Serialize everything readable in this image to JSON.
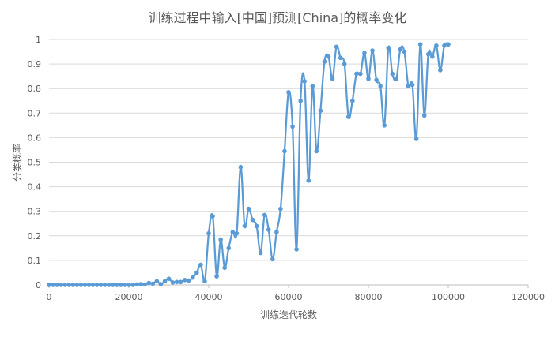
{
  "chart_data": {
    "type": "scatter",
    "title": "训练过程中输入[中国]预测[China]的概率变化",
    "xlabel": "训练迭代轮数",
    "ylabel": "分类概率",
    "xlim": [
      0,
      120000
    ],
    "ylim": [
      0,
      1
    ],
    "x_ticks": [
      "0",
      "20000",
      "40000",
      "60000",
      "80000",
      "100000",
      "120000"
    ],
    "y_ticks": [
      "0",
      "0.1",
      "0.2",
      "0.3",
      "0.4",
      "0.5",
      "0.6",
      "0.7",
      "0.8",
      "0.9",
      "1"
    ],
    "grid": "horizontal",
    "legend": "none",
    "color": "#5b9bd5",
    "marker": "circle",
    "line": "smooth",
    "series": [
      {
        "x": [
          0,
          1000,
          2000,
          3000,
          4000,
          5000,
          6000,
          7000,
          8000,
          9000,
          10000,
          11000,
          12000,
          13000,
          14000,
          15000,
          16000,
          17000,
          18000,
          19000,
          20000,
          21000,
          22000,
          23000,
          24000,
          25000,
          26000,
          27000,
          28000,
          29000,
          30000,
          31000,
          32000,
          33000,
          34000,
          35000,
          36000,
          37000,
          38000,
          39000,
          40000,
          41000,
          42000,
          43000,
          44000,
          45000,
          46000,
          47000,
          48000,
          49000,
          50000,
          51000,
          52000,
          53000,
          54000,
          55000,
          56000,
          57000,
          58000,
          59000,
          60000,
          61000,
          62000,
          63000,
          64000,
          65000,
          66000,
          67000,
          68000,
          69000,
          70000,
          71000,
          72000,
          73000,
          74000,
          75000,
          76000,
          77000,
          78000,
          79000,
          80000,
          81000,
          82000,
          83000,
          84000,
          85000,
          86000,
          87000,
          88000,
          89000,
          90000,
          91000,
          92000,
          93000,
          94000,
          95000,
          96000,
          97000,
          98000,
          99000,
          100000
        ],
        "y": [
          0,
          0,
          0,
          0,
          0,
          0,
          0,
          0,
          0,
          0,
          0,
          0,
          0,
          0,
          0,
          0,
          0,
          0,
          0,
          0,
          0,
          0,
          0.002,
          0.003,
          0.002,
          0.008,
          0.005,
          0.015,
          0.003,
          0.015,
          0.025,
          0.01,
          0.012,
          0.012,
          0.02,
          0.018,
          0.03,
          0.05,
          0.082,
          0.015,
          0.21,
          0.28,
          0.035,
          0.185,
          0.07,
          0.15,
          0.215,
          0.21,
          0.48,
          0.24,
          0.31,
          0.265,
          0.24,
          0.13,
          0.285,
          0.225,
          0.105,
          0.215,
          0.31,
          0.545,
          0.785,
          0.645,
          0.145,
          0.75,
          0.83,
          0.425,
          0.81,
          0.545,
          0.71,
          0.91,
          0.93,
          0.84,
          0.97,
          0.925,
          0.9,
          0.685,
          0.75,
          0.86,
          0.86,
          0.945,
          0.84,
          0.955,
          0.835,
          0.81,
          0.65,
          0.965,
          0.86,
          0.84,
          0.96,
          0.95,
          0.81,
          0.815,
          0.595,
          0.98,
          0.69,
          0.94,
          0.93,
          0.975,
          0.875,
          0.975,
          0.98
        ]
      }
    ]
  }
}
